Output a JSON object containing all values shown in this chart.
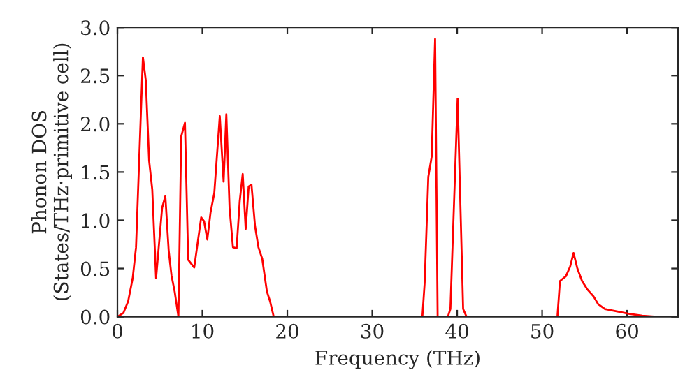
{
  "chart_data": {
    "type": "line",
    "xlabel": "Frequency (THz)",
    "ylabel": "Phonon DOS\n(States/THz·primitive cell)",
    "xlim": [
      0,
      66
    ],
    "ylim": [
      0,
      3.0
    ],
    "xticks": [
      0,
      10,
      20,
      30,
      40,
      50,
      60
    ],
    "yticks": [
      {
        "value": 0,
        "label": "0.0"
      },
      {
        "value": 0.5,
        "label": "0.5"
      },
      {
        "value": 1.0,
        "label": "1.0"
      },
      {
        "value": 1.5,
        "label": "1.5"
      },
      {
        "value": 2.0,
        "label": "2.0"
      },
      {
        "value": 2.5,
        "label": "2.5"
      },
      {
        "value": 3.0,
        "label": "3.0"
      }
    ],
    "grid": false,
    "series": [
      {
        "color": "#ff0000",
        "x": [
          0,
          0.71,
          1.26,
          1.8,
          2.19,
          3.0,
          3.34,
          3.73,
          4.1,
          4.55,
          5.26,
          5.64,
          6.03,
          6.36,
          6.74,
          7.18,
          7.51,
          7.95,
          8.33,
          9.04,
          9.86,
          10.2,
          10.58,
          10.96,
          11.4,
          12.05,
          12.5,
          12.82,
          13.2,
          13.6,
          14.03,
          14.4,
          14.75,
          15.1,
          15.45,
          15.78,
          16.2,
          16.6,
          17.05,
          17.6,
          17.97,
          18.4,
          35.9,
          36.17,
          36.6,
          37.0,
          37.4,
          37.7,
          38.9,
          39.2,
          40.05,
          40.7,
          41.1,
          51.8,
          52.1,
          52.8,
          53.3,
          53.7,
          54.15,
          54.7,
          55.35,
          56.06,
          56.6,
          57.4,
          59.07,
          60.2,
          61.8,
          63.45
        ],
        "values": [
          0,
          0.04,
          0.16,
          0.4,
          0.72,
          2.69,
          2.45,
          1.62,
          1.32,
          0.4,
          1.13,
          1.25,
          0.69,
          0.43,
          0.26,
          0,
          1.87,
          2.01,
          0.59,
          0.51,
          1.03,
          0.99,
          0.8,
          1.08,
          1.28,
          2.08,
          1.4,
          2.1,
          1.13,
          0.72,
          0.71,
          1.2,
          1.48,
          0.91,
          1.35,
          1.37,
          0.94,
          0.72,
          0.6,
          0.26,
          0.16,
          0,
          0,
          0.35,
          1.45,
          1.66,
          2.88,
          0,
          0,
          0.08,
          2.26,
          0.08,
          0,
          0,
          0.37,
          0.42,
          0.52,
          0.66,
          0.5,
          0.37,
          0.28,
          0.21,
          0.13,
          0.08,
          0.05,
          0.03,
          0.01,
          0
        ]
      }
    ]
  }
}
